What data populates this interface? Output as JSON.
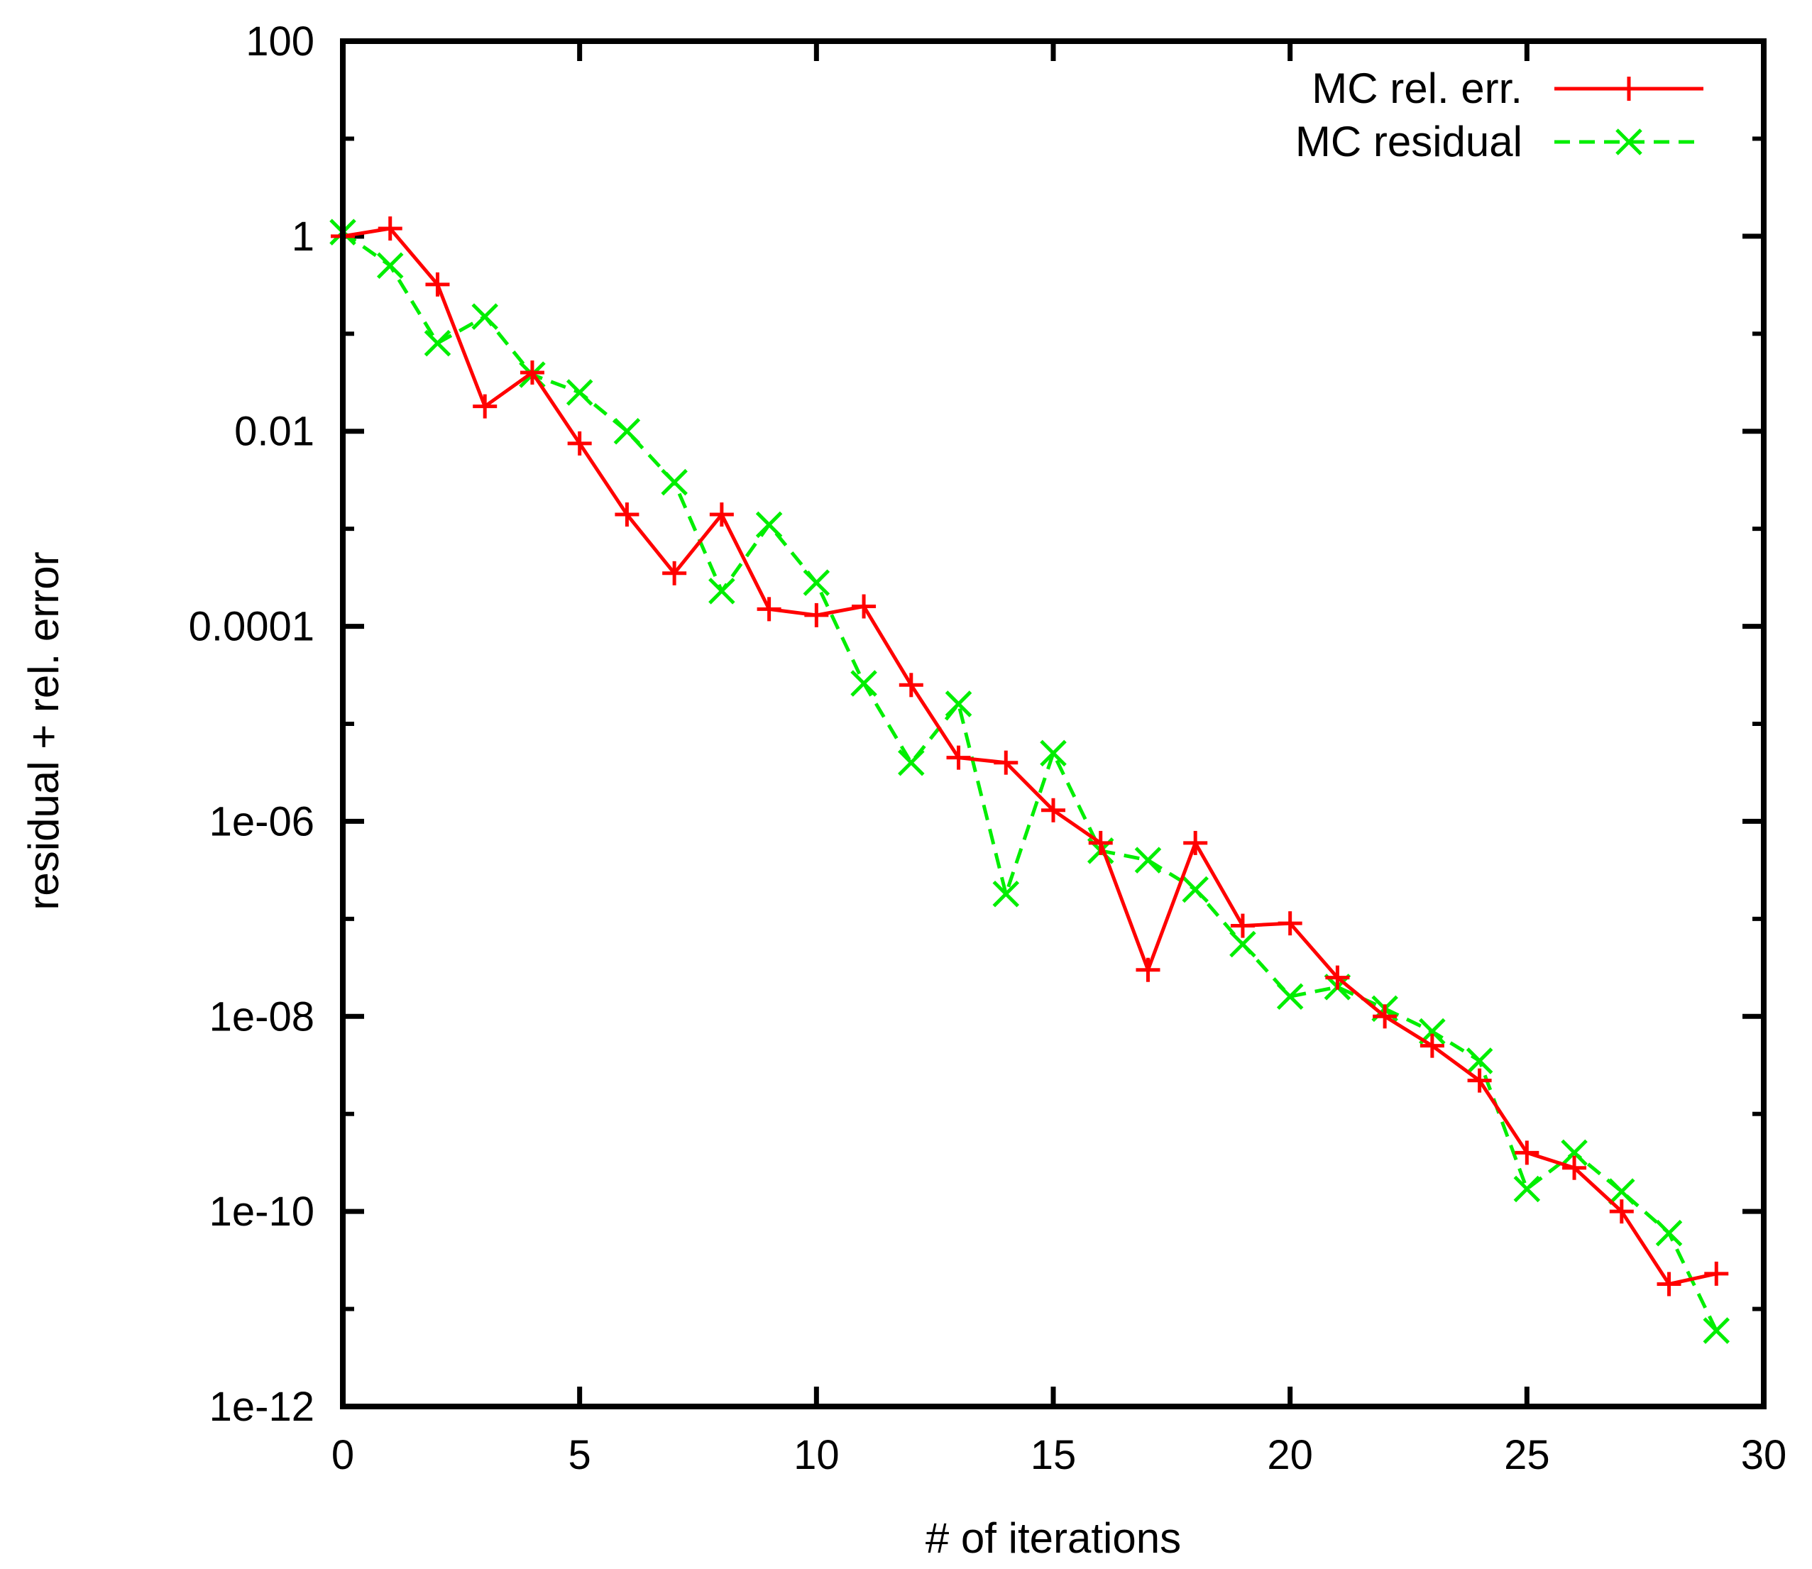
{
  "chart_data": {
    "type": "line",
    "title": "",
    "xlabel": "# of iterations",
    "ylabel": "residual + rel. error",
    "xlim": [
      0,
      30
    ],
    "ylim": [
      1e-12,
      100
    ],
    "yscale": "log",
    "grid": false,
    "legend_position": "top-right",
    "x_ticks": [
      {
        "value": 0,
        "label": "0"
      },
      {
        "value": 5,
        "label": "5"
      },
      {
        "value": 10,
        "label": "10"
      },
      {
        "value": 15,
        "label": "15"
      },
      {
        "value": 20,
        "label": "20"
      },
      {
        "value": 25,
        "label": "25"
      },
      {
        "value": 30,
        "label": "30"
      }
    ],
    "y_ticks": [
      {
        "value": 100,
        "label": "100"
      },
      {
        "value": 1,
        "label": "1"
      },
      {
        "value": 0.01,
        "label": "0.01"
      },
      {
        "value": 0.0001,
        "label": "0.0001"
      },
      {
        "value": 1e-06,
        "label": "1e-06"
      },
      {
        "value": 1e-08,
        "label": "1e-08"
      },
      {
        "value": 1e-10,
        "label": "1e-10"
      },
      {
        "value": 1e-12,
        "label": "1e-12"
      }
    ],
    "y_minor_ticks": [
      10,
      0.1,
      0.001,
      1e-05,
      1e-07,
      1e-09,
      1e-11
    ],
    "series": [
      {
        "name": "MC rel. err.",
        "color": "#ff0000",
        "dash": "solid",
        "marker": "plus",
        "x": [
          0,
          1,
          2,
          3,
          4,
          5,
          6,
          7,
          8,
          9,
          10,
          11,
          12,
          13,
          14,
          15,
          16,
          17,
          18,
          19,
          20,
          21,
          22,
          23,
          24,
          25,
          26,
          27,
          28,
          29
        ],
        "y": [
          1,
          1.2,
          0.32,
          0.018,
          0.04,
          0.0075,
          0.0014,
          0.00035,
          0.0014,
          0.00015,
          0.00013,
          0.00016,
          2.5e-05,
          4.5e-06,
          4e-06,
          1.3e-06,
          6e-07,
          3e-08,
          6e-07,
          8.5e-08,
          9e-08,
          2.5e-08,
          1e-08,
          5e-09,
          2.2e-09,
          4e-10,
          2.8e-10,
          1e-10,
          1.8e-11,
          2.3e-11
        ]
      },
      {
        "name": "MC residual",
        "color": "#00ee00",
        "dash": "dashed",
        "marker": "cross",
        "x": [
          0,
          1,
          2,
          3,
          4,
          5,
          6,
          7,
          8,
          9,
          10,
          11,
          12,
          13,
          14,
          15,
          16,
          17,
          18,
          19,
          20,
          21,
          22,
          23,
          24,
          25,
          26,
          27,
          28,
          29
        ],
        "y": [
          1.1,
          0.5,
          0.08,
          0.15,
          0.038,
          0.025,
          0.01,
          0.003,
          0.00023,
          0.0011,
          0.00028,
          2.6e-05,
          4e-06,
          1.6e-05,
          1.8e-07,
          5e-06,
          5e-07,
          4e-07,
          2e-07,
          5.5e-08,
          1.6e-08,
          2e-08,
          1.2e-08,
          7e-09,
          3.5e-09,
          1.7e-10,
          4e-10,
          1.6e-10,
          6e-11,
          6e-12
        ]
      }
    ]
  }
}
